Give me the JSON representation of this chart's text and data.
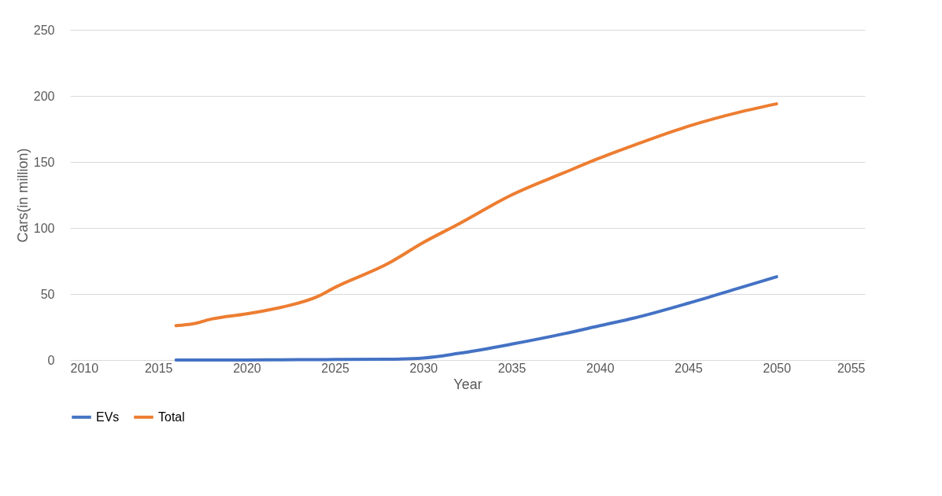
{
  "chart_data": {
    "type": "line",
    "xlabel": "Year",
    "ylabel": "Cars(in million)",
    "x": [
      2016,
      2017,
      2018,
      2020,
      2022,
      2024,
      2025,
      2028,
      2030,
      2032,
      2035,
      2038,
      2040,
      2042,
      2045,
      2048,
      2050
    ],
    "series": [
      {
        "name": "EVs",
        "color": "#4472c4",
        "values": [
          0,
          0,
          0,
          0,
          0.2,
          0.3,
          0.4,
          0.6,
          1.5,
          5,
          12,
          20,
          26,
          32,
          43,
          55,
          63
        ]
      },
      {
        "name": "Total",
        "color": "#ed7d31",
        "values": [
          26,
          27.5,
          31,
          35,
          40,
          48,
          55,
          73,
          89,
          103,
          125,
          142,
          153,
          163,
          177,
          188,
          194
        ]
      }
    ],
    "xlim": [
      2010,
      2055
    ],
    "xticks": [
      2010,
      2015,
      2020,
      2025,
      2030,
      2035,
      2040,
      2045,
      2050,
      2055
    ],
    "ylim": [
      0,
      250
    ],
    "yticks": [
      0,
      50,
      100,
      150,
      200,
      250
    ],
    "grid": "y",
    "legend": "bottom",
    "marker": "none",
    "line_style": "solid"
  }
}
